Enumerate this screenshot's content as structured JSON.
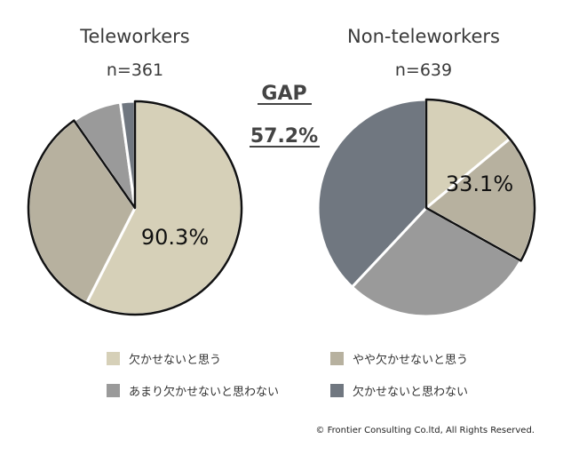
{
  "chart_data": [
    {
      "type": "pie",
      "title": "Teleworkers",
      "subtitle": "n=361",
      "categories": [
        "欠かせないと思う",
        "やや欠かせないと思う",
        "あまり欠かせないと思わない",
        "欠かせないと思わない"
      ],
      "values": [
        57.5,
        32.8,
        7.5,
        2.2
      ],
      "highlight_label": "90.3%",
      "colors": [
        "#d6d0b8",
        "#b7b19f",
        "#9a9a9a",
        "#707780"
      ]
    },
    {
      "type": "pie",
      "title": "Non-teleworkers",
      "subtitle": "n=639",
      "categories": [
        "欠かせないと思う",
        "やや欠かせないと思う",
        "あまり欠かせないと思わない",
        "欠かせないと思わない"
      ],
      "values": [
        14.0,
        19.1,
        28.9,
        38.0
      ],
      "highlight_label": "33.1%",
      "colors": [
        "#d6d0b8",
        "#b7b19f",
        "#9a9a9a",
        "#707780"
      ]
    }
  ],
  "gap": {
    "label": "GAP",
    "value": "57.2%"
  },
  "legend": [
    {
      "label": "欠かせないと思う",
      "color": "#d6d0b8"
    },
    {
      "label": "やや欠かせないと思う",
      "color": "#b7b19f"
    },
    {
      "label": "あまり欠かせないと思わない",
      "color": "#9a9a9a"
    },
    {
      "label": "欠かせないと思わない",
      "color": "#707780"
    }
  ],
  "copyright": "© Frontier Consulting Co.ltd, All Rights Reserved."
}
